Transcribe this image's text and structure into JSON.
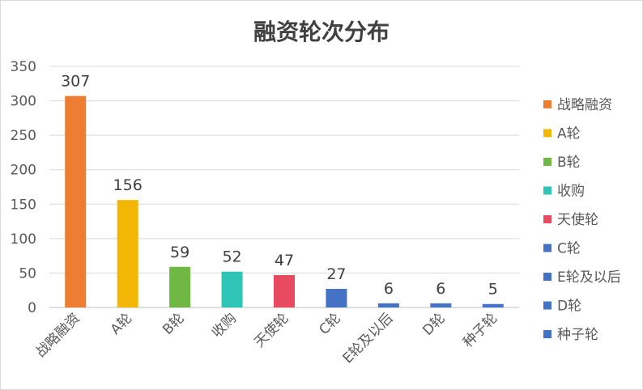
{
  "chart_data": {
    "type": "bar",
    "title": "融资轮次分布",
    "categories": [
      "战略融资",
      "A轮",
      "B轮",
      "收购",
      "天使轮",
      "C轮",
      "E轮及以后",
      "D轮",
      "种子轮"
    ],
    "values": [
      307,
      156,
      59,
      52,
      47,
      27,
      6,
      6,
      5
    ],
    "colors": [
      "#ed7d31",
      "#f2b705",
      "#70b844",
      "#2ec4b6",
      "#e84a5f",
      "#4472c4",
      "#4472c4",
      "#4472c4",
      "#4472c4"
    ],
    "ylim": [
      0,
      350
    ],
    "yticks": [
      0,
      50,
      100,
      150,
      200,
      250,
      300,
      350
    ],
    "grid": true,
    "legend_position": "right"
  }
}
